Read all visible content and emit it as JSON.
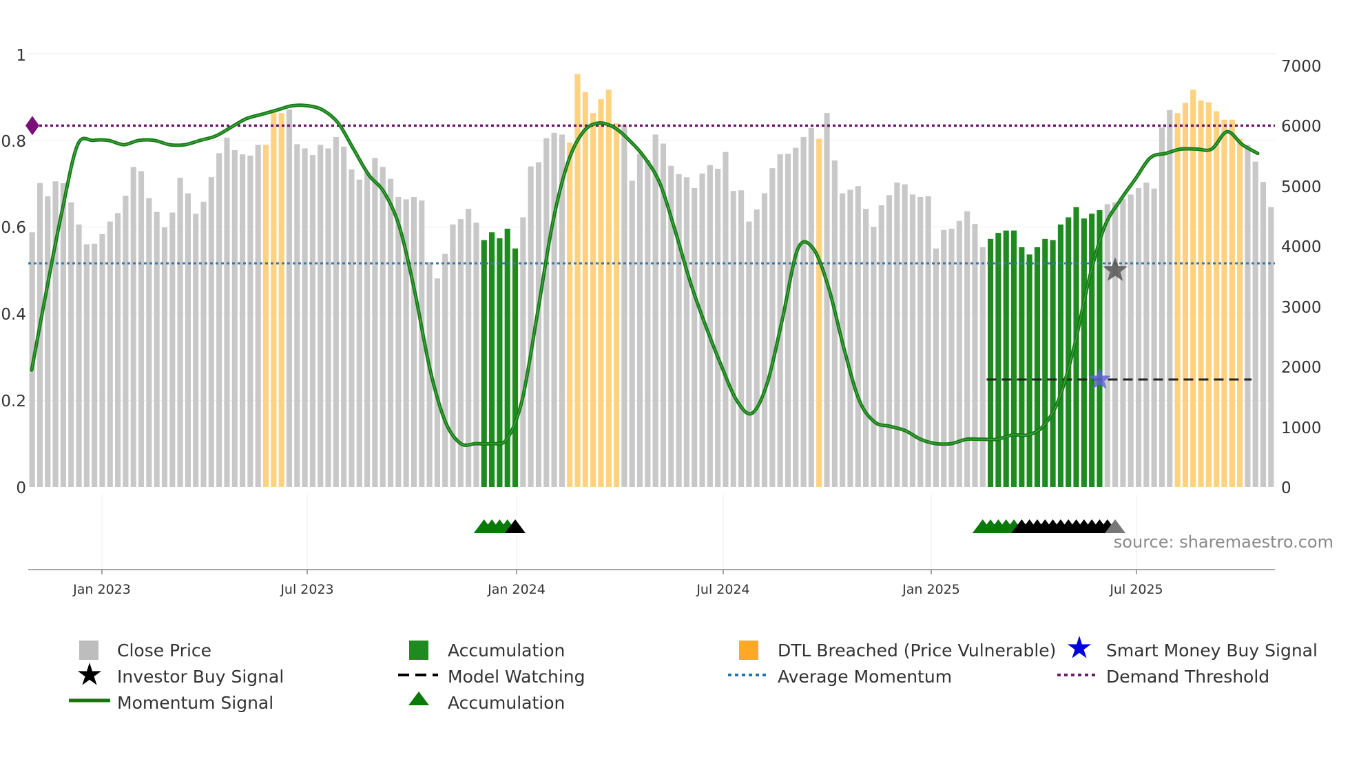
{
  "chart_data": {
    "type": "bar",
    "title": "",
    "source": "source: sharemaestro.com",
    "x_ticks": [
      "Jan 2023",
      "Jul 2023",
      "Jan 2024",
      "Jul 2024",
      "Jan 2025",
      "Jul 2025"
    ],
    "y_left": {
      "ylim": [
        0,
        1
      ],
      "ticks": [
        "0",
        "0.2",
        "0.4",
        "0.6",
        "0.8",
        "1"
      ]
    },
    "y_right": {
      "ylim": [
        0,
        7000
      ],
      "ticks": [
        "0",
        "1000",
        "2000",
        "3000",
        "4000",
        "5000",
        "6000",
        "7000"
      ]
    },
    "close_price": {
      "values": [
        4250,
        5070,
        4850,
        5100,
        5070,
        4750,
        4380,
        4050,
        4060,
        4220,
        4430,
        4570,
        4860,
        5340,
        5270,
        4820,
        4590,
        4330,
        4580,
        5160,
        4900,
        4560,
        4760,
        5170,
        5570,
        5830,
        5620,
        5550,
        5530,
        5710,
        5710,
        6270,
        6240,
        6300,
        5720,
        5650,
        5540,
        5710,
        5650,
        5840,
        5680,
        5300,
        5130,
        5250,
        5490,
        5340,
        5140,
        4840,
        4800,
        4840,
        4780,
        3750,
        3480,
        3890,
        4380,
        4470,
        4640,
        4410,
        4120,
        4250,
        4150,
        4310,
        3980,
        4500,
        5350,
        5420,
        5820,
        5910,
        5880,
        5750,
        6890,
        6590,
        6240,
        6470,
        6630,
        6070,
        6050,
        5110,
        5560,
        5460,
        5880,
        5730,
        5360,
        5220,
        5170,
        4990,
        5230,
        5370,
        5310,
        5590,
        4940,
        4950,
        4430,
        4630,
        4900,
        5320,
        5550,
        5560,
        5660,
        5840,
        5990,
        5810,
        6240,
        5450,
        4900,
        4960,
        5020,
        4640,
        4340,
        4700,
        4870,
        5080,
        5050,
        4880,
        4840,
        4850,
        3980,
        4290,
        4310,
        4440,
        4600,
        4390,
        4000,
        4140,
        4240,
        4280,
        4280,
        4000,
        3880,
        4000,
        4140,
        4120,
        4380,
        4500,
        4670,
        4480,
        4560,
        4620,
        4720,
        4750,
        4810,
        4880,
        4990,
        5080,
        4980,
        6000,
        6290,
        6240,
        6410,
        6630,
        6450,
        6420,
        6270,
        6130,
        6130,
        5810,
        5710,
        5430,
        5090,
        4670
      ],
      "color": "#c8c8c8"
    },
    "accumulation_bars": {
      "ranges": [
        [
          58,
          62
        ],
        [
          123,
          137
        ]
      ],
      "color": "#1f8a1f"
    },
    "dtl_breached_bars": {
      "ranges": [
        [
          30,
          32
        ],
        [
          69,
          75
        ],
        [
          101,
          101
        ],
        [
          147,
          155
        ]
      ],
      "color": "#ffd27f"
    },
    "momentum_signal": {
      "values": [
        0.27,
        0.46,
        0.64,
        0.79,
        0.8,
        0.8,
        0.79,
        0.8,
        0.8,
        0.79,
        0.79,
        0.8,
        0.81,
        0.83,
        0.85,
        0.86,
        0.87,
        0.88,
        0.88,
        0.87,
        0.84,
        0.78,
        0.72,
        0.68,
        0.6,
        0.45,
        0.27,
        0.15,
        0.1,
        0.1,
        0.1,
        0.11,
        0.2,
        0.4,
        0.61,
        0.75,
        0.82,
        0.84,
        0.83,
        0.8,
        0.76,
        0.7,
        0.59,
        0.47,
        0.37,
        0.28,
        0.2,
        0.17,
        0.24,
        0.39,
        0.55,
        0.55,
        0.46,
        0.32,
        0.2,
        0.15,
        0.14,
        0.13,
        0.11,
        0.1,
        0.1,
        0.11,
        0.11,
        0.11,
        0.12,
        0.12,
        0.14,
        0.2,
        0.32,
        0.48,
        0.6,
        0.66,
        0.71,
        0.76,
        0.77,
        0.78,
        0.78,
        0.78,
        0.82,
        0.79,
        0.77
      ],
      "color": "#0f7a0f",
      "line_width": 5
    },
    "average_momentum": {
      "value": 0.516,
      "color": "#3b78a8"
    },
    "demand_threshold": {
      "value": 0.834,
      "color": "#6d1a6d"
    },
    "model_watching": {
      "value": 0.248,
      "from_bar": 123,
      "to_bar": 156,
      "color": "#222222"
    },
    "investor_buy_signal": {
      "bar": 139,
      "value": 0.5,
      "color": "#555555"
    },
    "smart_money_buy_signal": {
      "bar": 137,
      "value": 0.248,
      "color": "#6060d8"
    },
    "accumulation_triangles": {
      "green": [
        58,
        59,
        60,
        61,
        122,
        123,
        124,
        125,
        126
      ],
      "black": [
        62,
        127,
        128,
        129,
        130,
        131,
        132,
        133,
        134,
        135,
        136,
        137,
        138
      ],
      "grey": [
        139
      ]
    }
  },
  "legend": [
    {
      "label": "Close Price",
      "swatch": "square",
      "color": "#bdbdbd"
    },
    {
      "label": "Accumulation",
      "swatch": "square",
      "color": "#1f8a1f"
    },
    {
      "label": "DTL Breached (Price Vulnerable)",
      "swatch": "square",
      "color": "#ffa726"
    },
    {
      "label": "Smart Money Buy Signal",
      "swatch": "star",
      "color": "#0000dd"
    },
    {
      "label": "Investor Buy Signal",
      "swatch": "star",
      "color": "#000000"
    },
    {
      "label": "Model Watching",
      "swatch": "dashed",
      "color": "#000000"
    },
    {
      "label": "Average Momentum",
      "swatch": "dotted",
      "color": "#1f77b4"
    },
    {
      "label": "Demand Threshold",
      "swatch": "dotted",
      "color": "#6d1a6d"
    },
    {
      "label": "Momentum Signal",
      "swatch": "line",
      "color": "#0f7a0f"
    },
    {
      "label": "Accumulation",
      "swatch": "triangle",
      "color": "#0a7a0a"
    }
  ]
}
